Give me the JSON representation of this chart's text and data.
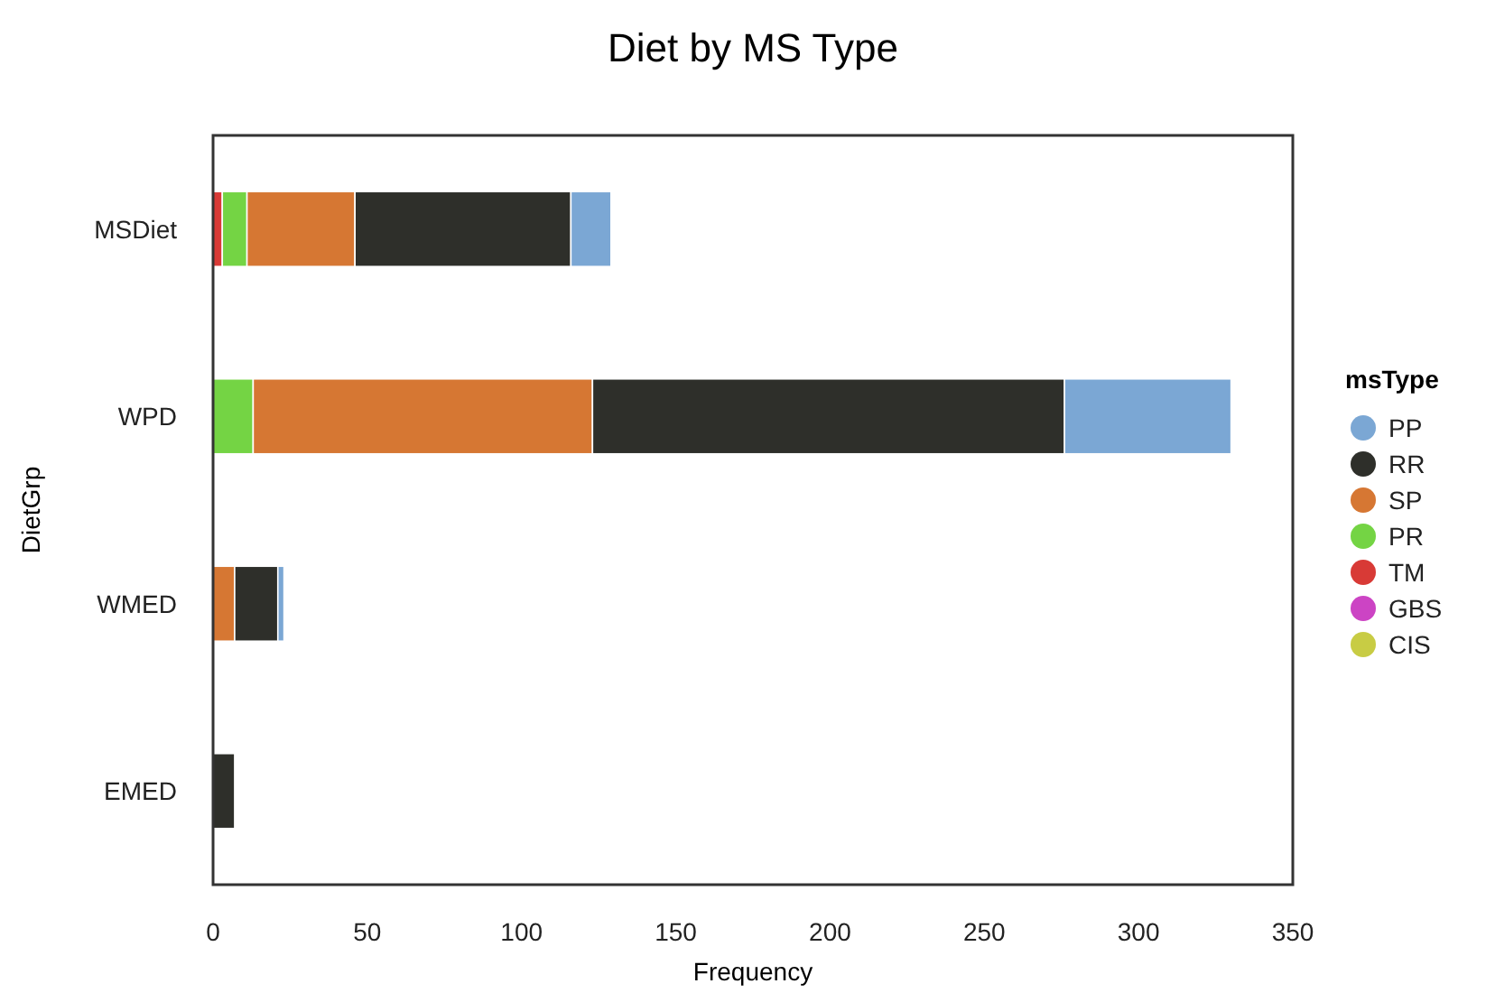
{
  "chart_data": {
    "type": "bar",
    "orientation": "horizontal",
    "stacked": true,
    "title": "Diet by MS Type",
    "xlabel": "Frequency",
    "ylabel": "DietGrp",
    "legend_title": "msType",
    "legend": "right",
    "grid": false,
    "categories": [
      "MSDiet",
      "WPD",
      "WMED",
      "EMED"
    ],
    "xlim": [
      0,
      350
    ],
    "xticks": [
      0,
      50,
      100,
      150,
      200,
      250,
      300,
      350
    ],
    "series": [
      {
        "name": "CIS",
        "color": "#c8cc44",
        "values": [
          null,
          null,
          null,
          null
        ]
      },
      {
        "name": "GBS",
        "color": "#cc44c4",
        "values": [
          null,
          null,
          null,
          null
        ]
      },
      {
        "name": "TM",
        "color": "#d83a36",
        "values": [
          3,
          null,
          null,
          null
        ]
      },
      {
        "name": "PR",
        "color": "#74d444",
        "values": [
          8,
          13,
          null,
          null
        ]
      },
      {
        "name": "SP",
        "color": "#d67733",
        "values": [
          35,
          110,
          7,
          null
        ]
      },
      {
        "name": "RR",
        "color": "#2e2f2a",
        "values": [
          70,
          153,
          14,
          7
        ]
      },
      {
        "name": "PP",
        "color": "#7ba7d4",
        "values": [
          13,
          54,
          2,
          null
        ]
      }
    ]
  }
}
